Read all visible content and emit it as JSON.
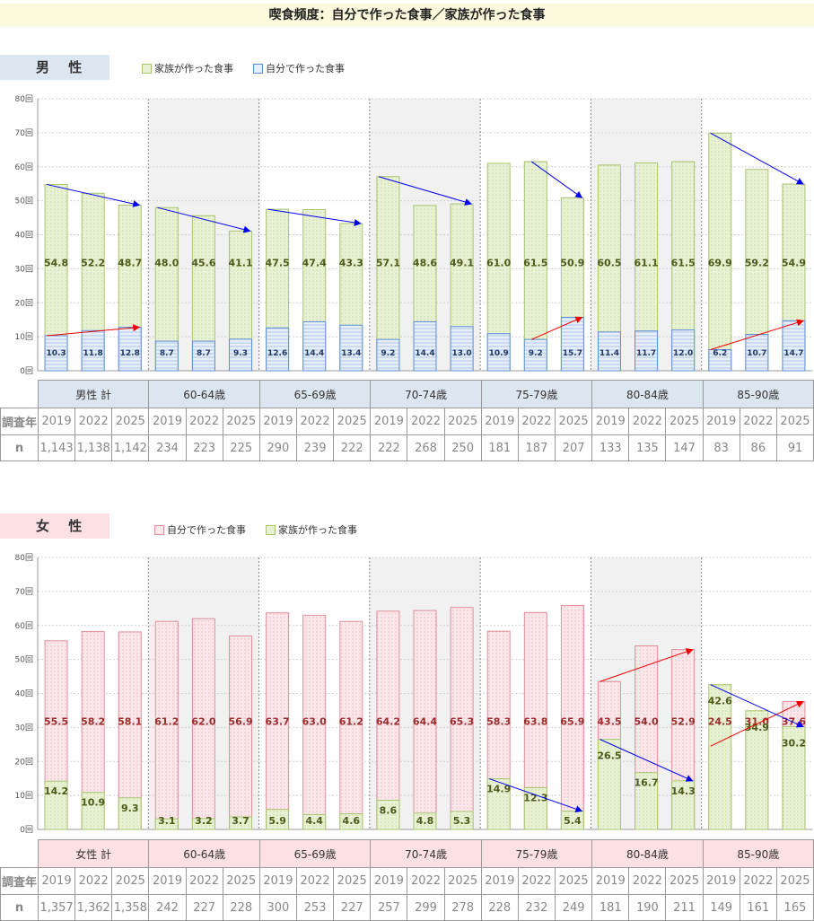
{
  "title": "喫食頻度：自分で作った食事／家族が作った食事",
  "colors": {
    "family_fill": "#e8f1d4",
    "family_border": "#a9c46f",
    "self_m_fill": "#e7eef8",
    "self_m_border": "#5b8fd6",
    "self_f_fill": "#fbe7ea",
    "self_f_border": "#e08f9b",
    "male_box": "#dce6f1",
    "female_box": "#fde0e4",
    "shade": "#f1f1f1",
    "arrow_blue": "#0000ee",
    "arrow_red": "#ee0000",
    "label_family": "#4d5a1a",
    "label_self_m": "#1f3864",
    "label_self_f": "#9b2c2c"
  },
  "y_ticks": [
    "0回",
    "10回",
    "20回",
    "30回",
    "40回",
    "50回",
    "60回",
    "70回",
    "80回"
  ],
  "male": {
    "box_label": "男 性",
    "legend": [
      "家族が作った食事",
      "自分で作った食事"
    ],
    "groups": [
      "男性 計",
      "60-64歳",
      "65-69歳",
      "70-74歳",
      "75-79歳",
      "80-84歳",
      "85-90歳"
    ],
    "row_year_label": "調査年",
    "row_n_label": "n",
    "years": [
      "2019",
      "2022",
      "2025"
    ],
    "n": [
      [
        "1,143",
        "1,138",
        "1,142"
      ],
      [
        "234",
        "223",
        "225"
      ],
      [
        "290",
        "239",
        "222"
      ],
      [
        "222",
        "268",
        "250"
      ],
      [
        "181",
        "187",
        "207"
      ],
      [
        "133",
        "135",
        "147"
      ],
      [
        "83",
        "86",
        "91"
      ]
    ]
  },
  "female": {
    "box_label": "女 性",
    "legend": [
      "自分で作った食事",
      "家族が作った食事"
    ],
    "groups": [
      "女性 計",
      "60-64歳",
      "65-69歳",
      "70-74歳",
      "75-79歳",
      "80-84歳",
      "85-90歳"
    ],
    "row_year_label": "調査年",
    "row_n_label": "n",
    "years": [
      "2019",
      "2022",
      "2025"
    ],
    "n": [
      [
        "1,357",
        "1,362",
        "1,358"
      ],
      [
        "242",
        "227",
        "228"
      ],
      [
        "300",
        "253",
        "227"
      ],
      [
        "257",
        "299",
        "278"
      ],
      [
        "228",
        "232",
        "249"
      ],
      [
        "181",
        "190",
        "211"
      ],
      [
        "149",
        "161",
        "165"
      ]
    ]
  },
  "chart_data": [
    {
      "type": "bar",
      "categories": [
        "男性 計 2019",
        "男性 計 2022",
        "男性 計 2025",
        "60-64歳 2019",
        "60-64歳 2022",
        "60-64歳 2025",
        "65-69歳 2019",
        "65-69歳 2022",
        "65-69歳 2025",
        "70-74歳 2019",
        "70-74歳 2022",
        "70-74歳 2025",
        "75-79歳 2019",
        "75-79歳 2022",
        "75-79歳 2025",
        "80-84歳 2019",
        "80-84歳 2022",
        "80-84歳 2025",
        "85-90歳 2019",
        "85-90歳 2022",
        "85-90歳 2025"
      ],
      "series": [
        {
          "name": "家族が作った食事",
          "values": [
            54.8,
            52.2,
            48.7,
            48.0,
            45.6,
            41.1,
            47.5,
            47.4,
            43.3,
            57.1,
            48.6,
            49.1,
            61.0,
            61.5,
            50.9,
            60.5,
            61.1,
            61.5,
            69.9,
            59.2,
            54.9
          ]
        },
        {
          "name": "自分で作った食事",
          "values": [
            10.3,
            11.8,
            12.8,
            8.7,
            8.7,
            9.3,
            12.6,
            14.4,
            13.4,
            9.2,
            14.4,
            13.0,
            10.9,
            9.2,
            15.7,
            11.4,
            11.7,
            12.0,
            6.2,
            10.7,
            14.7
          ]
        }
      ],
      "ylim": [
        0,
        80
      ],
      "arrows": [
        {
          "series": "家族が作った食事",
          "group": 0,
          "color": "blue"
        },
        {
          "series": "家族が作った食事",
          "group": 1,
          "color": "blue"
        },
        {
          "series": "家族が作った食事",
          "group": 2,
          "color": "blue"
        },
        {
          "series": "家族が作った食事",
          "group": 3,
          "color": "blue"
        },
        {
          "series": "家族が作った食事",
          "group": 4,
          "color": "blue",
          "from": 1
        },
        {
          "series": "家族が作った食事",
          "group": 6,
          "color": "blue"
        },
        {
          "series": "自分で作った食事",
          "group": 0,
          "color": "red"
        },
        {
          "series": "自分で作った食事",
          "group": 4,
          "color": "red",
          "from": 1
        },
        {
          "series": "自分で作った食事",
          "group": 6,
          "color": "red"
        }
      ]
    },
    {
      "type": "bar",
      "categories": [
        "女性 計 2019",
        "女性 計 2022",
        "女性 計 2025",
        "60-64歳 2019",
        "60-64歳 2022",
        "60-64歳 2025",
        "65-69歳 2019",
        "65-69歳 2022",
        "65-69歳 2025",
        "70-74歳 2019",
        "70-74歳 2022",
        "70-74歳 2025",
        "75-79歳 2019",
        "75-79歳 2022",
        "75-79歳 2025",
        "80-84歳 2019",
        "80-84歳 2022",
        "80-84歳 2025",
        "85-90歳 2019",
        "85-90歳 2022",
        "85-90歳 2025"
      ],
      "series": [
        {
          "name": "自分で作った食事",
          "values": [
            55.5,
            58.2,
            58.1,
            61.2,
            62.0,
            56.9,
            63.7,
            63.0,
            61.2,
            64.2,
            64.4,
            65.3,
            58.3,
            63.8,
            65.9,
            43.5,
            54.0,
            52.9,
            24.5,
            31.0,
            37.6
          ]
        },
        {
          "name": "家族が作った食事",
          "values": [
            14.2,
            10.9,
            9.3,
            3.1,
            3.2,
            3.7,
            5.9,
            4.4,
            4.6,
            8.6,
            4.8,
            5.3,
            14.9,
            12.3,
            5.4,
            26.5,
            16.7,
            14.3,
            42.6,
            34.9,
            30.2
          ]
        }
      ],
      "ylim": [
        0,
        80
      ],
      "arrows": [
        {
          "series": "自分で作った食事",
          "group": 5,
          "color": "red"
        },
        {
          "series": "自分で作った食事",
          "group": 6,
          "color": "red"
        },
        {
          "series": "家族が作った食事",
          "group": 4,
          "color": "blue"
        },
        {
          "series": "家族が作った食事",
          "group": 5,
          "color": "blue"
        },
        {
          "series": "家族が作った食事",
          "group": 6,
          "color": "blue"
        }
      ]
    }
  ]
}
